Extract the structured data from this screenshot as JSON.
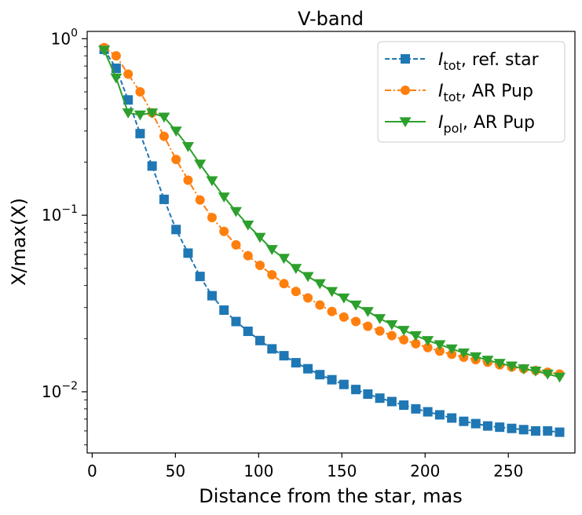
{
  "chart_data": {
    "type": "line",
    "title": "V-band",
    "xlabel": "Distance from the star, mas",
    "ylabel": "X/max(X)",
    "yscale": "log",
    "xlim": [
      -3,
      290
    ],
    "ylim": [
      0.0045,
      1.1
    ],
    "xticks": [
      0,
      50,
      100,
      150,
      200,
      250
    ],
    "xtick_labels": [
      "0",
      "50",
      "100",
      "150",
      "200",
      "250"
    ],
    "yticks": [
      0.01,
      0.1,
      1
    ],
    "ytick_labels": [
      {
        "base": "10",
        "exp": "−2"
      },
      {
        "base": "10",
        "exp": "−1"
      },
      {
        "base": "10",
        "exp": "0"
      }
    ],
    "legend_position": "top-right",
    "series": [
      {
        "name": "I_tot, ref. star",
        "legend_main": "I",
        "legend_sub": "tot",
        "legend_rest": ", ref. star",
        "color": "#1f77b4",
        "linestyle": "dashed",
        "marker": "square",
        "x": [
          7.2,
          14.4,
          21.6,
          28.8,
          36,
          43.2,
          50.4,
          57.6,
          64.8,
          72,
          79.2,
          86.4,
          93.6,
          100.8,
          108,
          115.2,
          122.4,
          129.6,
          136.8,
          144,
          151.2,
          158.4,
          165.6,
          172.8,
          180,
          187.2,
          194.4,
          201.6,
          208.8,
          216,
          223.2,
          230.4,
          237.6,
          244.8,
          252,
          259.2,
          266.4,
          273.6,
          280.8
        ],
        "values": [
          0.87,
          0.68,
          0.45,
          0.29,
          0.19,
          0.123,
          0.083,
          0.061,
          0.045,
          0.035,
          0.029,
          0.025,
          0.022,
          0.0195,
          0.0175,
          0.016,
          0.0146,
          0.0135,
          0.0125,
          0.0117,
          0.011,
          0.0103,
          0.0097,
          0.0092,
          0.0088,
          0.0084,
          0.008,
          0.0077,
          0.0074,
          0.0071,
          0.0068,
          0.0066,
          0.0064,
          0.0063,
          0.0062,
          0.0061,
          0.006,
          0.006,
          0.0059
        ]
      },
      {
        "name": "I_tot, AR Pup",
        "legend_main": "I",
        "legend_sub": "tot",
        "legend_rest": ", AR Pup",
        "color": "#ff7f0e",
        "linestyle": "dashdot",
        "marker": "circle",
        "x": [
          7.2,
          14.4,
          21.6,
          28.8,
          36,
          43.2,
          50.4,
          57.6,
          64.8,
          72,
          79.2,
          86.4,
          93.6,
          100.8,
          108,
          115.2,
          122.4,
          129.6,
          136.8,
          144,
          151.2,
          158.4,
          165.6,
          172.8,
          180,
          187.2,
          194.4,
          201.6,
          208.8,
          216,
          223.2,
          230.4,
          237.6,
          244.8,
          252,
          259.2,
          266.4,
          273.6,
          280.8
        ],
        "values": [
          0.89,
          0.8,
          0.63,
          0.5,
          0.38,
          0.28,
          0.207,
          0.158,
          0.122,
          0.097,
          0.081,
          0.068,
          0.059,
          0.052,
          0.046,
          0.041,
          0.037,
          0.034,
          0.031,
          0.0285,
          0.0265,
          0.025,
          0.0235,
          0.0221,
          0.0208,
          0.0197,
          0.0187,
          0.0178,
          0.017,
          0.0163,
          0.0157,
          0.0152,
          0.0147,
          0.0142,
          0.0138,
          0.0135,
          0.0132,
          0.0129,
          0.0126
        ]
      },
      {
        "name": "I_pol, AR Pup",
        "legend_main": "I",
        "legend_sub": "pol",
        "legend_rest": ", AR Pup",
        "color": "#2ca02c",
        "linestyle": "solid",
        "marker": "triangle-down",
        "x": [
          7.2,
          14.4,
          21.6,
          28.8,
          36,
          43.2,
          50.4,
          57.6,
          64.8,
          72,
          79.2,
          86.4,
          93.6,
          100.8,
          108,
          115.2,
          122.4,
          129.6,
          136.8,
          144,
          151.2,
          158.4,
          165.6,
          172.8,
          180,
          187.2,
          194.4,
          201.6,
          208.8,
          216,
          223.2,
          230.4,
          237.6,
          244.8,
          252,
          259.2,
          266.4,
          273.6,
          280.8
        ],
        "values": [
          0.86,
          0.6,
          0.38,
          0.37,
          0.38,
          0.36,
          0.3,
          0.245,
          0.195,
          0.157,
          0.127,
          0.105,
          0.088,
          0.075,
          0.064,
          0.057,
          0.05,
          0.045,
          0.041,
          0.037,
          0.034,
          0.031,
          0.0285,
          0.026,
          0.024,
          0.0223,
          0.0208,
          0.0195,
          0.0185,
          0.0175,
          0.0166,
          0.0158,
          0.0151,
          0.0145,
          0.014,
          0.0135,
          0.0131,
          0.0126,
          0.0121
        ]
      }
    ]
  }
}
